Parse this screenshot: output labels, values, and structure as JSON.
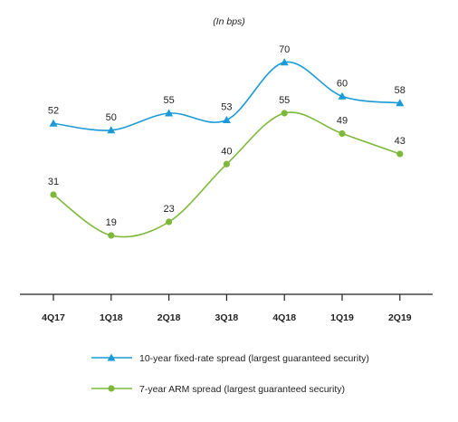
{
  "chart_data": {
    "type": "line",
    "unit_label": "(In bps)",
    "categories": [
      "4Q17",
      "1Q18",
      "2Q18",
      "3Q18",
      "4Q18",
      "1Q19",
      "2Q19"
    ],
    "series": [
      {
        "name": "10-year fixed-rate spread (largest guaranteed security)",
        "values": [
          52,
          50,
          55,
          53,
          70,
          60,
          58
        ],
        "color": "#1a9ad6",
        "marker": "triangle"
      },
      {
        "name": "7-year ARM spread (largest guaranteed security)",
        "values": [
          31,
          19,
          23,
          40,
          55,
          49,
          43
        ],
        "color": "#7db83a",
        "marker": "circle"
      }
    ],
    "ylim": [
      0,
      75
    ],
    "grid": false,
    "smooth": true,
    "legend_position": "bottom"
  }
}
